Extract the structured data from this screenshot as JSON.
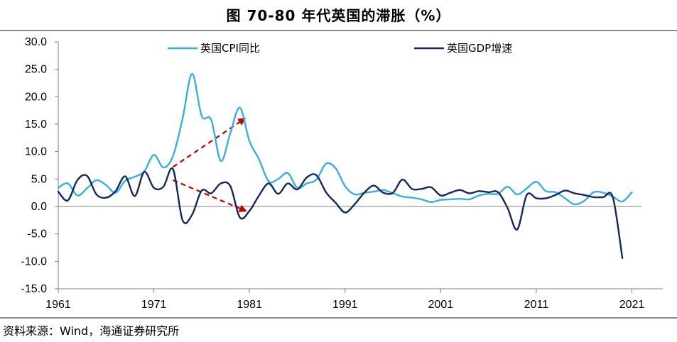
{
  "chart_data": {
    "type": "line",
    "title": "图 70-80 年代英国的滞胀（%）",
    "source": "资料来源：Wind，海通证券研究所",
    "xlabel": "",
    "ylabel": "",
    "x_ticks": [
      "1961",
      "1971",
      "1981",
      "1991",
      "2001",
      "2011",
      "2021"
    ],
    "y_ticks": [
      "30.0",
      "25.0",
      "20.0",
      "15.0",
      "10.0",
      "5.0",
      "0.0",
      "-5.0",
      "-10.0",
      "-15.0"
    ],
    "ylim": [
      -15,
      30
    ],
    "xlim": [
      1961,
      2022
    ],
    "legend_position": "top",
    "series": [
      {
        "name": "英国CPI同比",
        "color": "#3aaee0",
        "x": [
          1961,
          1962,
          1963,
          1964,
          1965,
          1966,
          1967,
          1968,
          1969,
          1970,
          1971,
          1972,
          1973,
          1974,
          1975,
          1976,
          1977,
          1978,
          1979,
          1980,
          1981,
          1982,
          1983,
          1984,
          1985,
          1986,
          1987,
          1988,
          1989,
          1990,
          1991,
          1992,
          1993,
          1994,
          1995,
          1996,
          1997,
          1998,
          1999,
          2000,
          2001,
          2002,
          2003,
          2004,
          2005,
          2006,
          2007,
          2008,
          2009,
          2010,
          2011,
          2012,
          2013,
          2014,
          2015,
          2016,
          2017,
          2018,
          2019,
          2020,
          2021
        ],
        "values": [
          3.4,
          4.2,
          2.0,
          3.3,
          4.8,
          3.9,
          2.5,
          4.7,
          5.4,
          6.4,
          9.4,
          7.1,
          9.2,
          16.0,
          24.2,
          16.5,
          15.8,
          8.3,
          13.4,
          18.0,
          11.9,
          8.6,
          4.6,
          5.0,
          6.1,
          3.4,
          4.2,
          4.9,
          7.8,
          7.0,
          3.7,
          2.2,
          2.5,
          2.7,
          3.0,
          2.4,
          1.8,
          1.6,
          1.3,
          0.8,
          1.2,
          1.3,
          1.4,
          1.3,
          2.0,
          2.3,
          2.3,
          3.6,
          2.2,
          3.3,
          4.5,
          2.8,
          2.6,
          1.5,
          0.4,
          1.0,
          2.6,
          2.5,
          1.8,
          0.9,
          2.6
        ]
      },
      {
        "name": "英国GDP增速",
        "color": "#14285c",
        "x": [
          1961,
          1962,
          1963,
          1964,
          1965,
          1966,
          1967,
          1968,
          1969,
          1970,
          1971,
          1972,
          1973,
          1974,
          1975,
          1976,
          1977,
          1978,
          1979,
          1980,
          1981,
          1982,
          1983,
          1984,
          1985,
          1986,
          1987,
          1988,
          1989,
          1990,
          1991,
          1992,
          1993,
          1994,
          1995,
          1996,
          1997,
          1998,
          1999,
          2000,
          2001,
          2002,
          2003,
          2004,
          2005,
          2006,
          2007,
          2008,
          2009,
          2010,
          2011,
          2012,
          2013,
          2014,
          2015,
          2016,
          2017,
          2018,
          2019,
          2020
        ],
        "values": [
          2.7,
          1.1,
          4.8,
          5.6,
          2.2,
          1.6,
          2.8,
          5.5,
          1.9,
          6.3,
          3.4,
          3.6,
          6.8,
          -2.5,
          -1.5,
          2.9,
          2.4,
          4.2,
          3.7,
          -2.0,
          -0.8,
          2.0,
          4.2,
          2.3,
          4.2,
          3.1,
          5.3,
          5.7,
          2.6,
          0.7,
          -1.1,
          0.4,
          2.5,
          3.8,
          2.5,
          2.5,
          4.9,
          3.2,
          3.2,
          3.5,
          2.0,
          2.5,
          3.0,
          2.4,
          2.8,
          2.6,
          2.6,
          -0.3,
          -4.2,
          2.1,
          1.5,
          1.5,
          2.1,
          2.9,
          2.4,
          2.1,
          1.7,
          1.7,
          1.7,
          -9.4
        ]
      }
    ],
    "annotations": [
      {
        "type": "arrow",
        "style": "dashed",
        "color": "#c00000",
        "from": [
          1973,
          7.2
        ],
        "to": [
          1980.5,
          16.0
        ]
      },
      {
        "type": "arrow",
        "style": "dashed",
        "color": "#c00000",
        "from": [
          1973,
          4.8
        ],
        "to": [
          1980.6,
          -0.8
        ]
      }
    ]
  }
}
